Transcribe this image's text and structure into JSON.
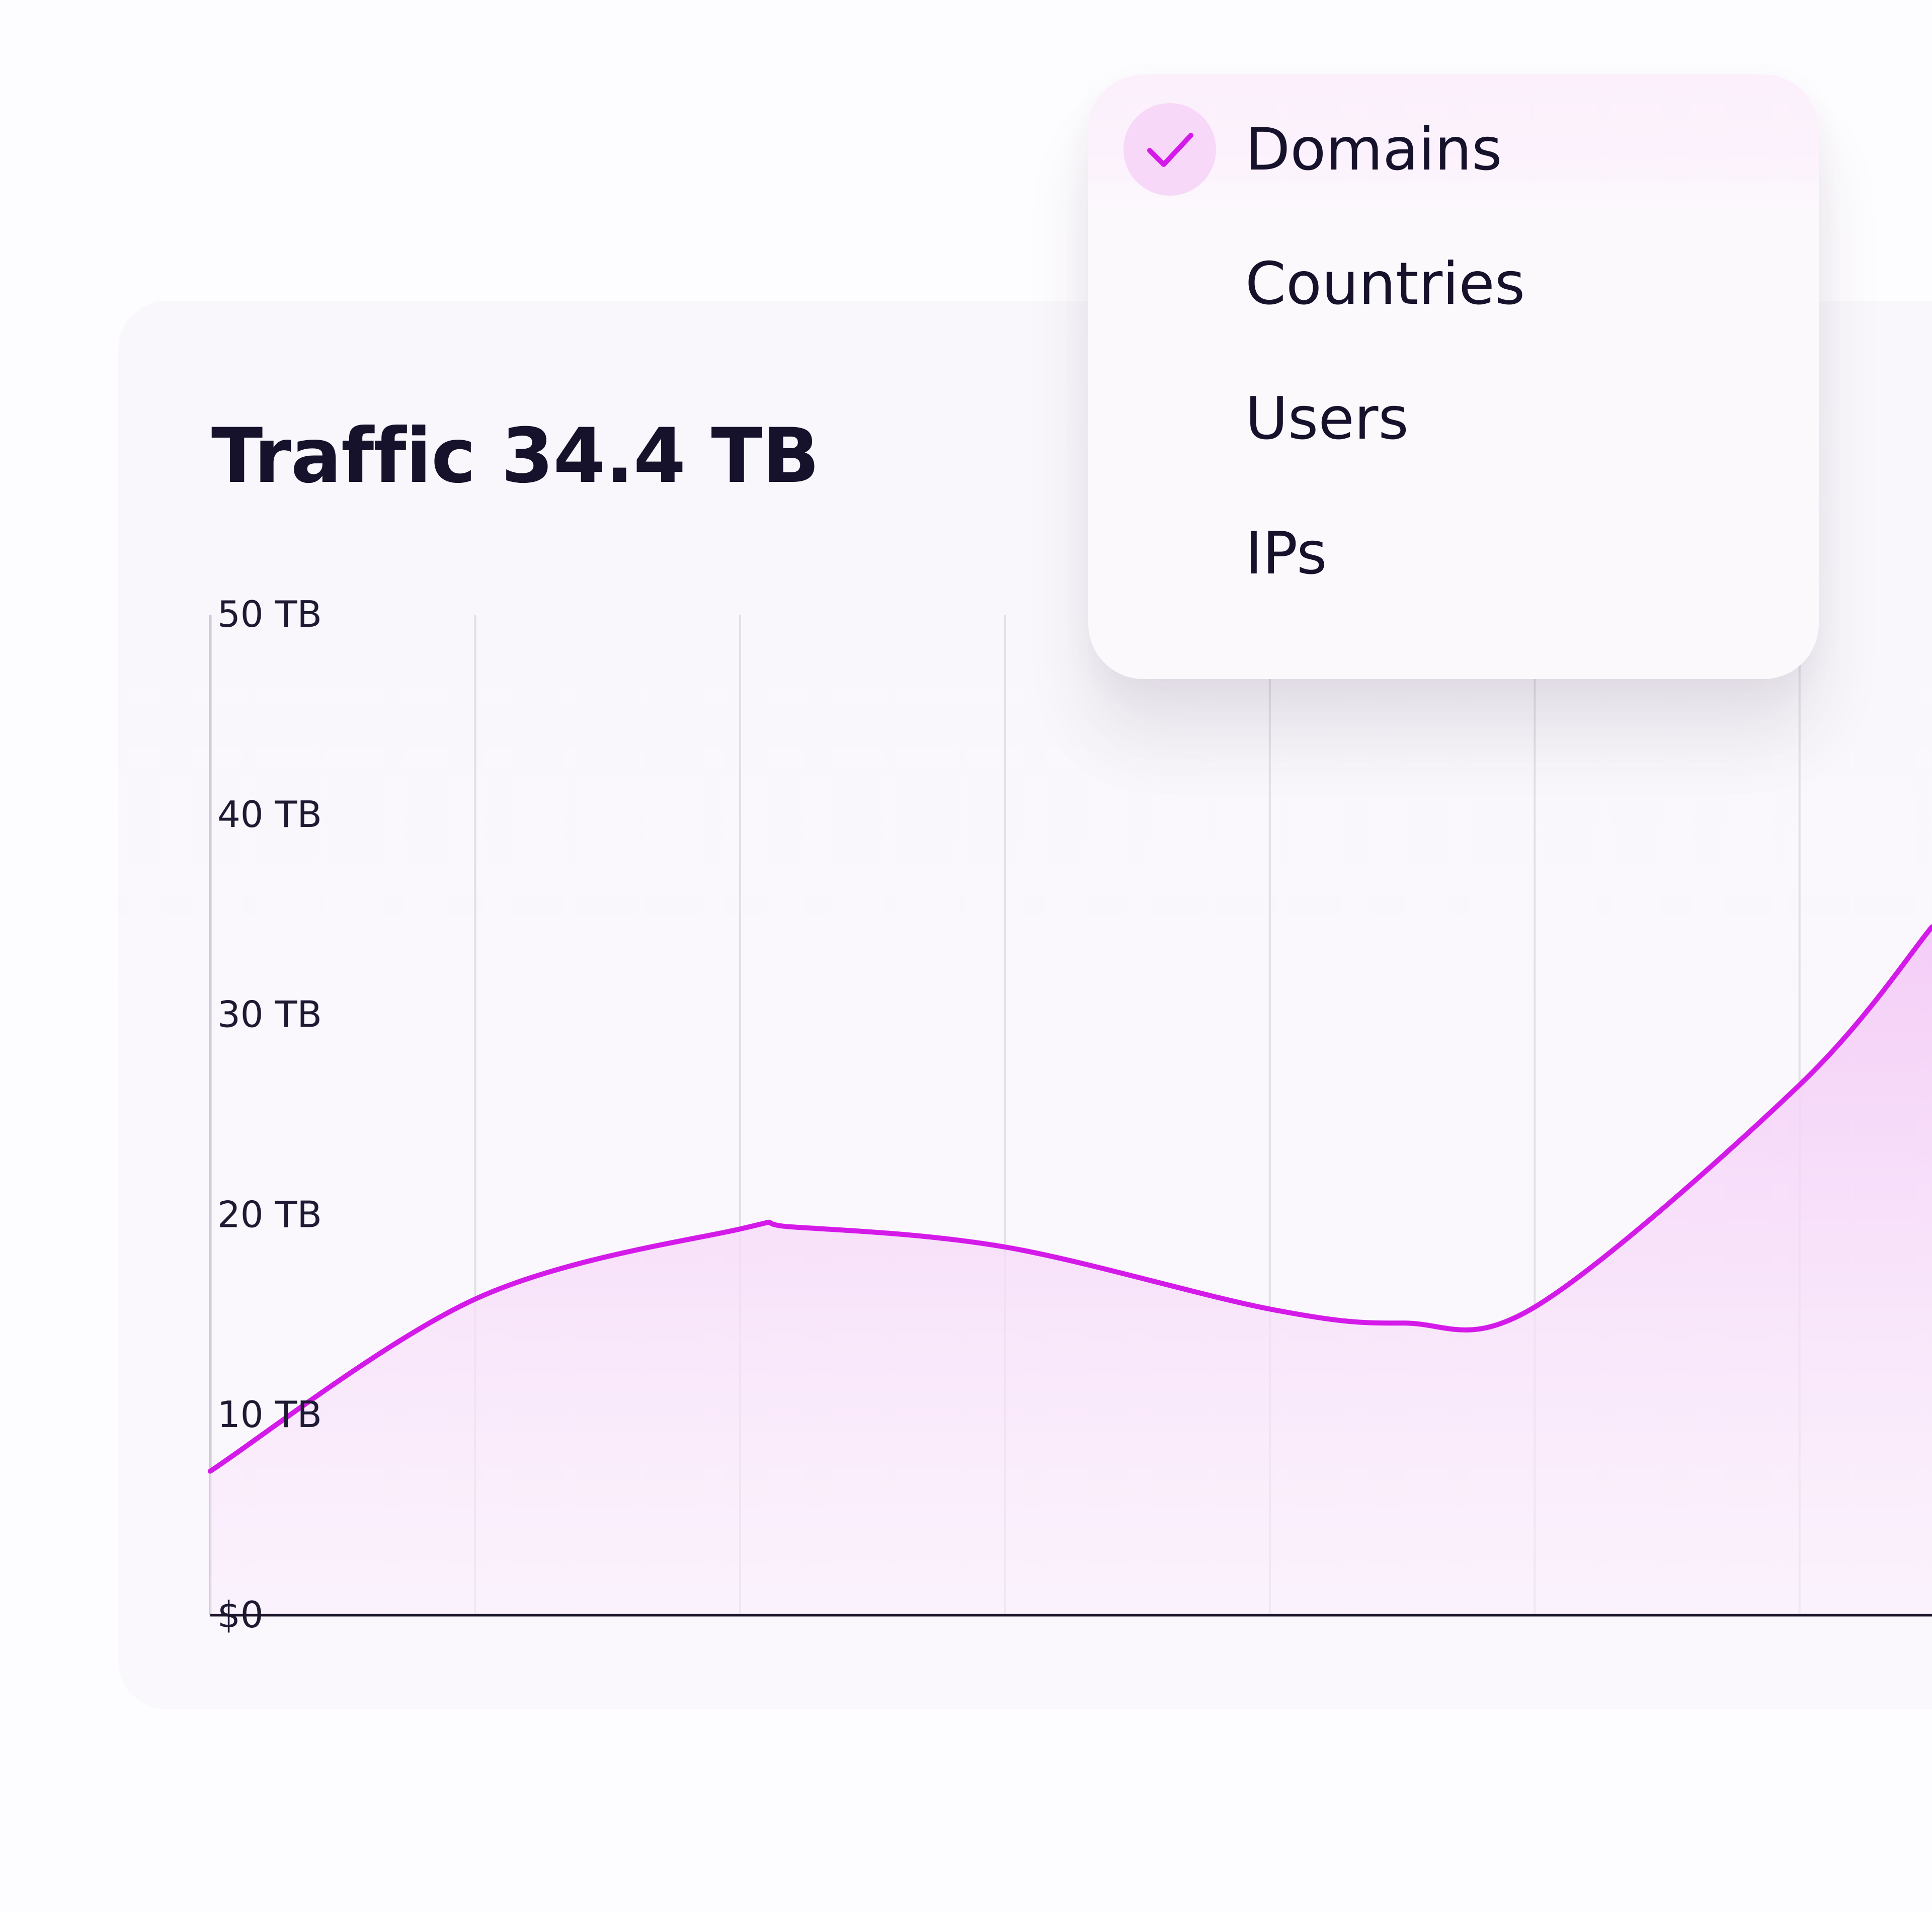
{
  "title": "Traffic 34.4 TB",
  "menu": {
    "items": [
      {
        "label": "Domains",
        "selected": true
      },
      {
        "label": "Countries",
        "selected": false
      },
      {
        "label": "Users",
        "selected": false
      },
      {
        "label": "IPs",
        "selected": false
      }
    ]
  },
  "colors": {
    "line": "#d41ae8",
    "area": "#f6d2f8",
    "check_bg": "#f7d8f8",
    "text": "#16122c"
  },
  "chart_data": {
    "type": "area",
    "title": "Traffic 34.4 TB",
    "xlabel": "",
    "ylabel": "",
    "y_ticks": [
      "$0",
      "10 TB",
      "20 TB",
      "30 TB",
      "40 TB",
      "50 TB"
    ],
    "ylim": [
      0,
      50
    ],
    "xlim": [
      0,
      6.5
    ],
    "grid": {
      "vertical": true,
      "horizontal": false
    },
    "series": [
      {
        "x": [
          0,
          1,
          2,
          2.2,
          3,
          4,
          4.5,
          5,
          6,
          6.5
        ],
        "values": [
          7.2,
          15.8,
          19.3,
          19.4,
          18.4,
          15.3,
          14.6,
          15.4,
          26.5,
          34.4
        ]
      }
    ]
  }
}
